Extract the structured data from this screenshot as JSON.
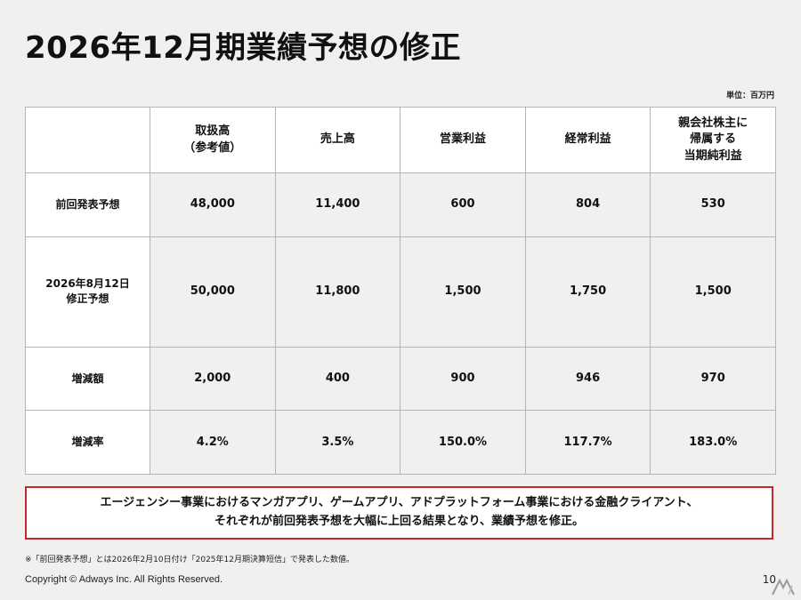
{
  "title": "2026年12月期業績予想の修正",
  "unit": "単位：百万円",
  "table": {
    "headers": [
      "",
      "取扱高\n（参考値）",
      "売上高",
      "営業利益",
      "経常利益",
      "親会社株主に\n帰属する\n当期純利益"
    ],
    "rows": [
      {
        "label": "前回発表予想",
        "values": [
          "48,000",
          "11,400",
          "600",
          "804",
          "530"
        ]
      },
      {
        "label": "2026年8月12日\n修正予想",
        "values": [
          "50,000",
          "11,800",
          "1,500",
          "1,750",
          "1,500"
        ]
      },
      {
        "label": "増減額",
        "values": [
          "2,000",
          "400",
          "900",
          "946",
          "970"
        ]
      },
      {
        "label": "増減率",
        "values": [
          "4.2%",
          "3.5%",
          "150.0%",
          "117.7%",
          "183.0%"
        ]
      }
    ]
  },
  "note": {
    "line1": "エージェンシー事業におけるマンガアプリ、ゲームアプリ、アドプラットフォーム事業における金融クライアント、",
    "line2": "それぞれが前回発表予想を大幅に上回る結果となり、業績予想を修正。"
  },
  "footnote": "※「前回発表予想」とは2026年2月10日付け「2025年12月期決算短信」で発表した数値。",
  "copyright": "Copyright © Adways Inc. All Rights Reserved.",
  "page_number": "10"
}
